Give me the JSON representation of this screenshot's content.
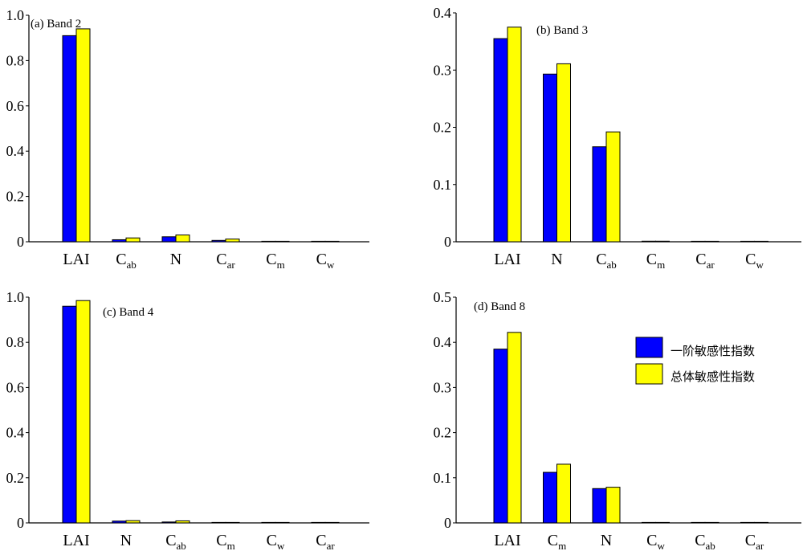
{
  "chart_data": [
    {
      "type": "bar",
      "title": "(a) Band 2",
      "categories": [
        {
          "base": "LAI",
          "sub": ""
        },
        {
          "base": "C",
          "sub": "ab"
        },
        {
          "base": "N",
          "sub": ""
        },
        {
          "base": "C",
          "sub": "ar"
        },
        {
          "base": "C",
          "sub": "m"
        },
        {
          "base": "C",
          "sub": "w"
        }
      ],
      "series": [
        {
          "name": "一阶敏感性指数",
          "values": [
            0.91,
            0.009,
            0.022,
            0.006,
            0.001,
            0.001
          ]
        },
        {
          "name": "总体敏感性指数",
          "values": [
            0.94,
            0.017,
            0.03,
            0.012,
            0.001,
            0.001
          ]
        }
      ],
      "ylim": [
        0,
        1.0
      ],
      "yticks": [
        "0",
        "0.2",
        "0.4",
        "0.6",
        "0.8",
        "1.0"
      ],
      "xlabel": "",
      "ylabel": "",
      "grid": false
    },
    {
      "type": "bar",
      "title": "(b) Band 3",
      "categories": [
        {
          "base": "LAI",
          "sub": ""
        },
        {
          "base": "N",
          "sub": ""
        },
        {
          "base": "C",
          "sub": "ab"
        },
        {
          "base": "C",
          "sub": "m"
        },
        {
          "base": "C",
          "sub": "ar"
        },
        {
          "base": "C",
          "sub": "w"
        }
      ],
      "series": [
        {
          "name": "一阶敏感性指数",
          "values": [
            0.355,
            0.293,
            0.166,
            0.001,
            0.0,
            0.0
          ]
        },
        {
          "name": "总体敏感性指数",
          "values": [
            0.375,
            0.311,
            0.192,
            0.001,
            0.0,
            0.0
          ]
        }
      ],
      "ylim": [
        0,
        0.4
      ],
      "yticks": [
        "0",
        "0.1",
        "0.2",
        "0.3",
        "0.4"
      ],
      "xlabel": "",
      "ylabel": "",
      "grid": false
    },
    {
      "type": "bar",
      "title": "(c) Band 4",
      "categories": [
        {
          "base": "LAI",
          "sub": ""
        },
        {
          "base": "N",
          "sub": ""
        },
        {
          "base": "C",
          "sub": "ab"
        },
        {
          "base": "C",
          "sub": "m"
        },
        {
          "base": "C",
          "sub": "w"
        },
        {
          "base": "C",
          "sub": "ar"
        }
      ],
      "series": [
        {
          "name": "一阶敏感性指数",
          "values": [
            0.96,
            0.008,
            0.004,
            0.0,
            0.0,
            0.0
          ]
        },
        {
          "name": "总体敏感性指数",
          "values": [
            0.985,
            0.01,
            0.009,
            0.0,
            0.0,
            0.0
          ]
        }
      ],
      "ylim": [
        0,
        1.0
      ],
      "yticks": [
        "0",
        "0.2",
        "0.4",
        "0.6",
        "0.8",
        "1.0"
      ],
      "xlabel": "",
      "ylabel": "",
      "grid": false
    },
    {
      "type": "bar",
      "title": "(d) Band 8",
      "categories": [
        {
          "base": "LAI",
          "sub": ""
        },
        {
          "base": "C",
          "sub": "m"
        },
        {
          "base": "N",
          "sub": ""
        },
        {
          "base": "C",
          "sub": "w"
        },
        {
          "base": "C",
          "sub": "ab"
        },
        {
          "base": "C",
          "sub": "ar"
        }
      ],
      "series": [
        {
          "name": "一阶敏感性指数",
          "values": [
            0.385,
            0.112,
            0.076,
            0.001,
            0.0,
            0.0
          ]
        },
        {
          "name": "总体敏感性指数",
          "values": [
            0.422,
            0.13,
            0.079,
            0.001,
            0.0,
            0.0
          ]
        }
      ],
      "ylim": [
        0,
        0.5
      ],
      "yticks": [
        "0",
        "0.1",
        "0.2",
        "0.3",
        "0.4",
        "0.5"
      ],
      "xlabel": "",
      "ylabel": "",
      "grid": false,
      "legend": {
        "position": "right",
        "entries": [
          {
            "label": "一阶敏感性指数",
            "color": "#0000ff"
          },
          {
            "label": "总体敏感性指数",
            "color": "#ffff00"
          }
        ]
      }
    }
  ],
  "colors": {
    "series_1": "#0000ff",
    "series_2": "#ffff00",
    "axis": "#000000",
    "bar_outline": "#000000"
  }
}
